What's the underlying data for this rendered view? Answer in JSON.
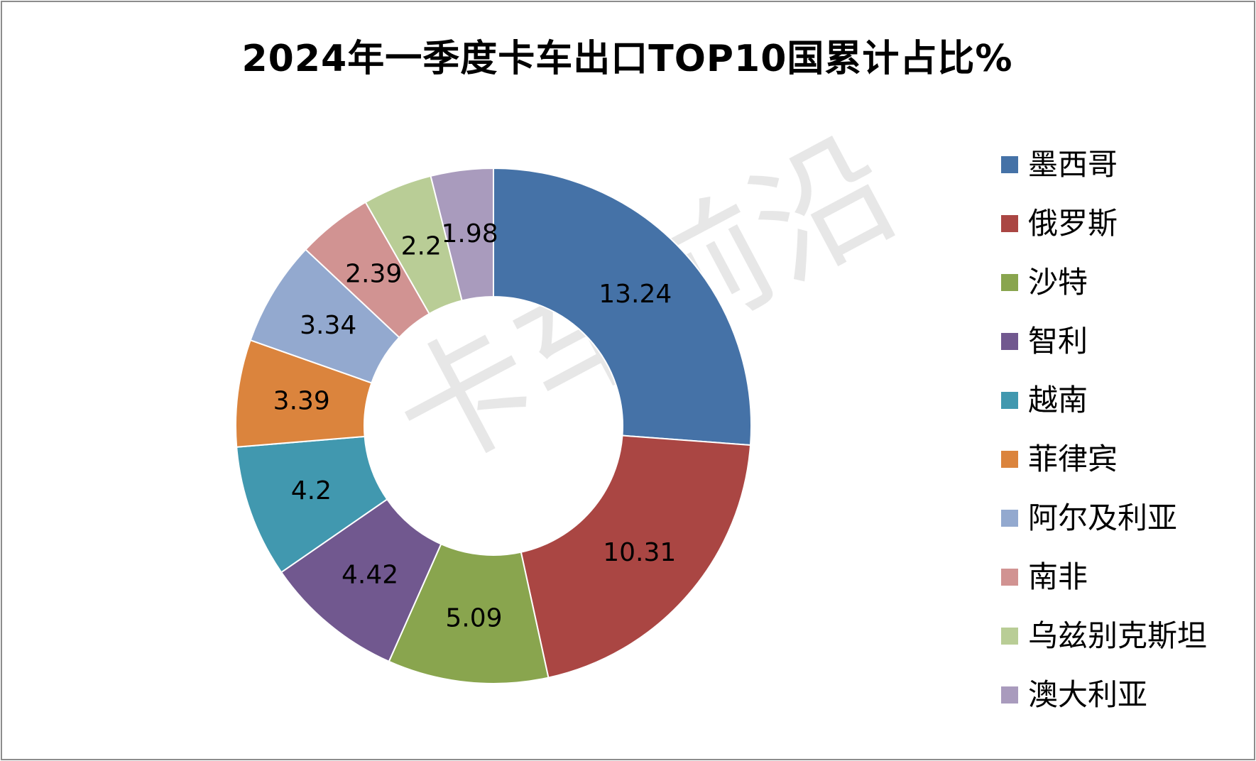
{
  "title": "2024年一季度卡车出口TOP10国累计占比%",
  "watermark": "卡车前沿",
  "chart_data": {
    "type": "pie",
    "variant": "donut",
    "title": "2024年一季度卡车出口TOP10国累计占比%",
    "legend_position": "right",
    "categories": [
      "墨西哥",
      "俄罗斯",
      "沙特",
      "智利",
      "越南",
      "菲律宾",
      "阿尔及利亚",
      "南非",
      "乌兹别克斯坦",
      "澳大利亚"
    ],
    "values": [
      13.24,
      10.31,
      5.09,
      4.42,
      4.2,
      3.39,
      3.34,
      2.39,
      2.2,
      1.98
    ],
    "labels": [
      "13.24",
      "10.31",
      "5.09",
      "4.42",
      "4.2",
      "3.39",
      "3.34",
      "2.39",
      "2.2",
      "1.98"
    ],
    "colors": [
      "#4572A7",
      "#AA4643",
      "#89A54E",
      "#71588F",
      "#4198AF",
      "#DB843D",
      "#93A9CF",
      "#D19392",
      "#B9CD96",
      "#A99BBD"
    ]
  }
}
